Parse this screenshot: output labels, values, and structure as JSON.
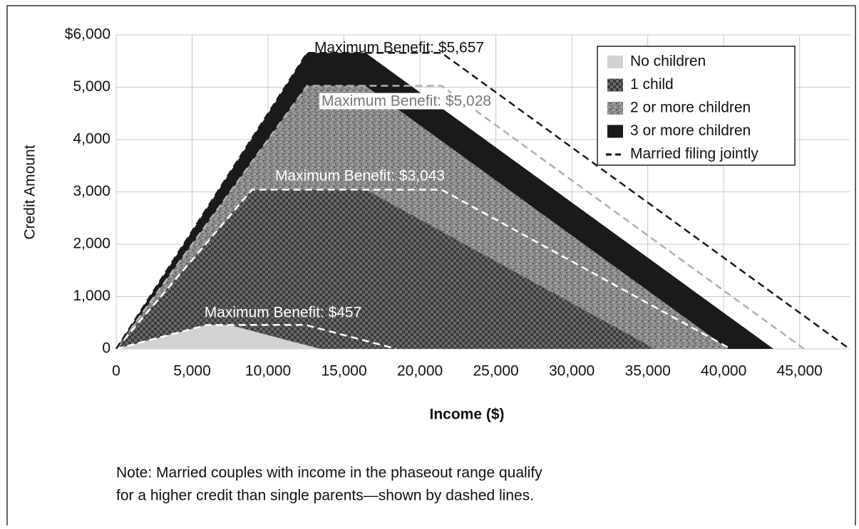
{
  "chart_data": {
    "type": "area",
    "xlabel": "Income ($)",
    "ylabel": "Credit Amount",
    "xlim": [
      0,
      48300
    ],
    "ylim": [
      0,
      6000
    ],
    "xticks": [
      0,
      {
        "value": 5000,
        "label": "5,000"
      },
      {
        "value": 10000,
        "label": "10,000"
      },
      {
        "value": 15000,
        "label": "15,000"
      },
      {
        "value": 20000,
        "label": "20,000"
      },
      {
        "value": 25000,
        "label": "25,000"
      },
      {
        "value": 30000,
        "label": "30,000"
      },
      {
        "value": 35000,
        "label": "35,000"
      },
      {
        "value": 40000,
        "label": "40,000"
      },
      {
        "value": 45000,
        "label": "45,000"
      }
    ],
    "yticks": [
      0,
      {
        "value": 1000,
        "label": "1,000"
      },
      {
        "value": 2000,
        "label": "2,000"
      },
      {
        "value": 3000,
        "label": "3,000"
      },
      {
        "value": 4000,
        "label": "4,000"
      },
      {
        "value": 5000,
        "label": "5,000"
      },
      {
        "value": 6000,
        "label": "$6,000"
      }
    ],
    "grid": true,
    "legend": "upper right",
    "series": [
      {
        "name": "No children",
        "color": "#cfcfcf",
        "x": [
          0,
          5970,
          7470,
          13440
        ],
        "values": [
          0,
          457,
          457,
          0
        ]
      },
      {
        "name": "1 child",
        "color": "#4a4a4a",
        "x": [
          0,
          8950,
          16420,
          35463
        ],
        "values": [
          0,
          3043,
          3043,
          0
        ]
      },
      {
        "name": "2 or more children",
        "color": "#8a8a8a",
        "x": [
          0,
          12570,
          16420,
          40295
        ],
        "values": [
          0,
          5028,
          5028,
          0
        ]
      },
      {
        "name": "3 or more children",
        "color": "#1a1a1a",
        "x": [
          0,
          12570,
          16420,
          43279
        ],
        "values": [
          0,
          5657,
          5657,
          0
        ]
      }
    ],
    "married": {
      "name": "Married filing jointly",
      "lines": [
        {
          "color": "#ffffff",
          "x": [
            0,
            5970,
            12470,
            18440
          ],
          "values": [
            0,
            457,
            457,
            0
          ]
        },
        {
          "color": "#ffffff",
          "x": [
            0,
            8950,
            21420,
            40463
          ],
          "values": [
            0,
            3043,
            3043,
            0
          ]
        },
        {
          "color": "#b0b0b0",
          "x": [
            0,
            12570,
            21420,
            45295
          ],
          "values": [
            0,
            5028,
            5028,
            0
          ]
        },
        {
          "color": "#1a1a1a",
          "x": [
            0,
            12570,
            21420,
            48279
          ],
          "values": [
            0,
            5657,
            5657,
            0
          ]
        }
      ]
    },
    "annotations": [
      "Maximum Benefit: $5,657",
      "Maximum Benefit: $5,028",
      "Maximum Benefit: $3,043",
      "Maximum Benefit: $457"
    ],
    "note": [
      "Note: Married couples with income in the phaseout range qualify",
      "for a higher credit than single parents—shown by dashed lines."
    ]
  }
}
